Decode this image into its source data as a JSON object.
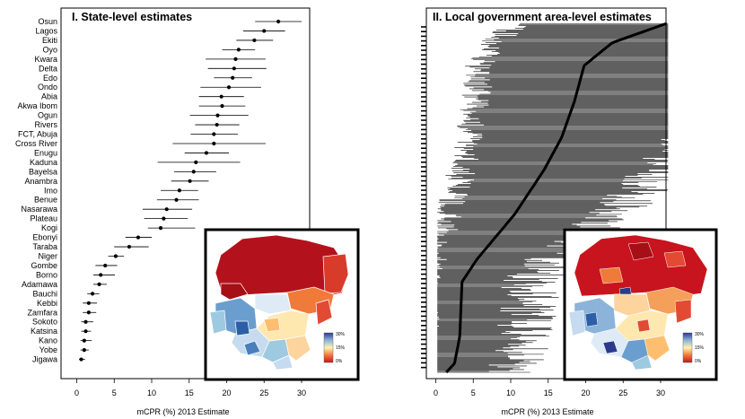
{
  "panel1": {
    "title": "I.  State-level estimates",
    "xlabel": "mCPR (%) 2013 Estimate"
  },
  "panel2": {
    "title": "II.  Local government area-level estimates",
    "xlabel": "mCPR (%) 2013 Estimate"
  },
  "legend": {
    "top": "30%",
    "mid": "15%",
    "bottom": "0%"
  },
  "colors": {
    "map_high": "#2b3a8e",
    "map_mid": "#fff2b0",
    "map_low": "#c8141e",
    "ink": "#000000"
  },
  "chart_data": [
    {
      "type": "dot-interval",
      "title": "I.  State-level estimates",
      "xlabel": "mCPR (%) 2013 Estimate",
      "xlim": [
        0,
        31
      ],
      "xticks": [
        0,
        5,
        10,
        15,
        20,
        25,
        30
      ],
      "categories": [
        "Osun",
        "Lagos",
        "Ekiti",
        "Oyo",
        "Kwara",
        "Delta",
        "Edo",
        "Ondo",
        "Abia",
        "Akwa Ibom",
        "Ogun",
        "Rivers",
        "FCT, Abuja",
        "Cross River",
        "Enugu",
        "Kaduna",
        "Bayelsa",
        "Anambra",
        "Imo",
        "Benue",
        "Nasarawa",
        "Plateau",
        "Kogi",
        "Ebonyi",
        "Taraba",
        "Niger",
        "Gombe",
        "Borno",
        "Adamawa",
        "Bauchi",
        "Kebbi",
        "Zamfara",
        "Sokoto",
        "Katsina",
        "Kano",
        "Yobe",
        "Jigawa"
      ],
      "values": [
        26.9,
        25.0,
        23.7,
        21.6,
        21.2,
        21.0,
        20.8,
        20.3,
        19.3,
        19.4,
        18.8,
        18.7,
        18.3,
        18.3,
        17.3,
        15.9,
        15.6,
        15.1,
        13.7,
        13.3,
        12.0,
        11.6,
        11.2,
        8.2,
        7.0,
        5.2,
        3.8,
        3.2,
        3.0,
        2.1,
        1.6,
        1.6,
        1.2,
        1.2,
        1.0,
        1.0,
        0.6
      ],
      "lower": [
        23.8,
        22.2,
        21.3,
        19.4,
        17.2,
        17.5,
        18.3,
        16.5,
        16.3,
        16.3,
        15.1,
        15.8,
        15.2,
        12.8,
        14.4,
        10.8,
        13.0,
        12.6,
        11.2,
        10.7,
        8.8,
        9.0,
        9.5,
        6.5,
        5.0,
        4.2,
        2.5,
        2.2,
        2.2,
        1.4,
        0.8,
        0.8,
        0.6,
        0.6,
        0.5,
        0.5,
        0.3
      ],
      "upper": [
        30.0,
        27.8,
        26.2,
        23.8,
        25.2,
        25.3,
        23.4,
        24.6,
        22.3,
        22.5,
        22.9,
        21.7,
        21.5,
        25.2,
        20.3,
        21.8,
        18.6,
        17.6,
        16.2,
        16.3,
        15.4,
        14.8,
        15.8,
        10.0,
        9.6,
        6.3,
        5.4,
        5.1,
        4.0,
        3.0,
        2.7,
        2.6,
        2.2,
        1.9,
        2.0,
        1.6,
        1.1
      ]
    },
    {
      "type": "dot-interval",
      "title": "II.  Local government area-level estimates",
      "xlabel": "mCPR (%) 2013 Estimate",
      "xlim": [
        0,
        31
      ],
      "xticks": [
        0,
        5,
        10,
        15,
        20,
        25,
        30
      ],
      "n_areas": 774,
      "median_curve_knots": [
        [
          0,
          1.4
        ],
        [
          20,
          2.5
        ],
        [
          80,
          3.2
        ],
        [
          200,
          3.5
        ],
        [
          250,
          5.5
        ],
        [
          300,
          8.0
        ],
        [
          350,
          10.5
        ],
        [
          400,
          12.5
        ],
        [
          450,
          14.5
        ],
        [
          520,
          16.8
        ],
        [
          600,
          18.5
        ],
        [
          680,
          19.8
        ],
        [
          730,
          23.5
        ],
        [
          774,
          31.0
        ]
      ]
    }
  ]
}
